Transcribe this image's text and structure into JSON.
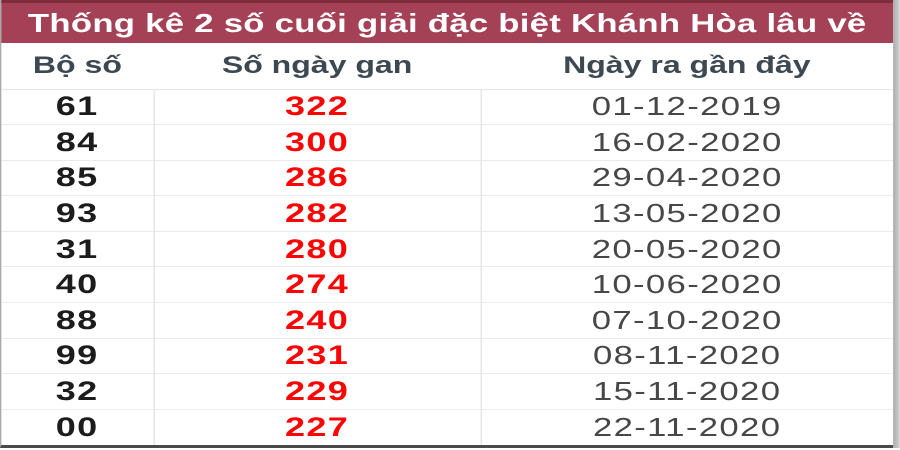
{
  "title": "Thống kê 2 số cuối giải đặc biệt Khánh Hòa lâu về",
  "table": {
    "columns": [
      "Bộ số",
      "Số ngày gan",
      "Ngày ra gần đây"
    ],
    "rows": [
      {
        "pair": "61",
        "gan_days": "322",
        "last_date": "01-12-2019"
      },
      {
        "pair": "84",
        "gan_days": "300",
        "last_date": "16-02-2020"
      },
      {
        "pair": "85",
        "gan_days": "286",
        "last_date": "29-04-2020"
      },
      {
        "pair": "93",
        "gan_days": "282",
        "last_date": "13-05-2020"
      },
      {
        "pair": "31",
        "gan_days": "280",
        "last_date": "20-05-2020"
      },
      {
        "pair": "40",
        "gan_days": "274",
        "last_date": "10-06-2020"
      },
      {
        "pair": "88",
        "gan_days": "240",
        "last_date": "07-10-2020"
      },
      {
        "pair": "99",
        "gan_days": "231",
        "last_date": "08-11-2020"
      },
      {
        "pair": "32",
        "gan_days": "229",
        "last_date": "15-11-2020"
      },
      {
        "pair": "00",
        "gan_days": "227",
        "last_date": "22-11-2020"
      }
    ]
  },
  "colors": {
    "titlebar_bg": "#a54156",
    "titlebar_top": "#7f2d3c",
    "title_text": "#ffffff",
    "header_text": "#3c4852",
    "pair_text": "#1c1c1c",
    "gan_text": "#fa0404",
    "date_text": "#474747"
  }
}
